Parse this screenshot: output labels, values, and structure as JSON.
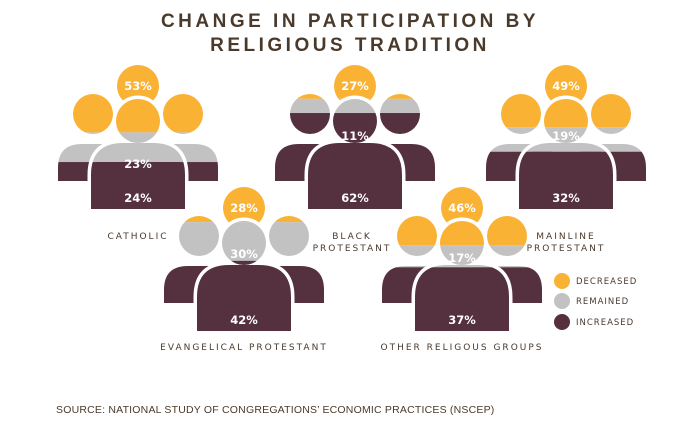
{
  "title": {
    "line1": "CHANGE IN PARTICIPATION BY",
    "line2": "RELIGIOUS TRADITION"
  },
  "source": "SOURCE: NATIONAL STUDY OF CONGREGATIONS’ ECONOMIC PRACTICES (NSCEP)",
  "colors": {
    "decreased": "#f9b233",
    "remained": "#c2c2c2",
    "increased": "#55303f"
  },
  "chart_data": {
    "type": "pictogram",
    "series": [
      {
        "name": "DECREASED",
        "color": "#f9b233"
      },
      {
        "name": "REMAINED",
        "color": "#c2c2c2"
      },
      {
        "name": "INCREASED",
        "color": "#55303f"
      }
    ],
    "groups": [
      {
        "label": [
          "CATHOLIC"
        ],
        "decreased": 53,
        "remained": 23,
        "increased": 24
      },
      {
        "label": [
          "BLACK",
          "PROTESTANT"
        ],
        "decreased": 27,
        "remained": 11,
        "increased": 62
      },
      {
        "label": [
          "MAINLINE",
          "PROTESTANT"
        ],
        "decreased": 49,
        "remained": 19,
        "increased": 32
      },
      {
        "label": [
          "EVANGELICAL PROTESTANT"
        ],
        "decreased": 28,
        "remained": 30,
        "increased": 42
      },
      {
        "label": [
          "OTHER RELIGOUS GROUPS"
        ],
        "decreased": 46,
        "remained": 17,
        "increased": 37
      }
    ],
    "legend_position": "bottom-right"
  }
}
